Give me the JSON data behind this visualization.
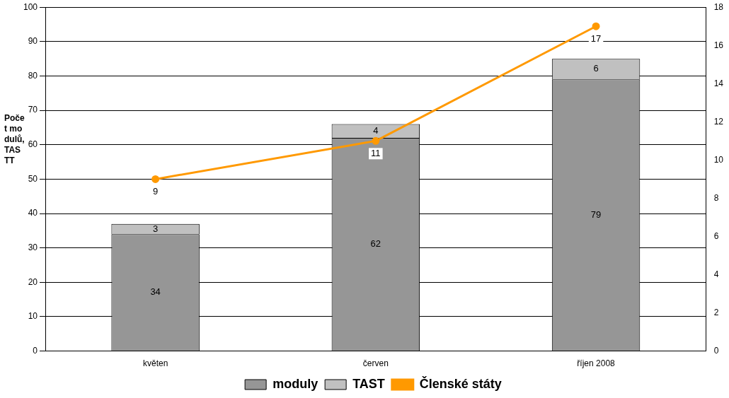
{
  "chart_data": {
    "type": "bar",
    "stacked": true,
    "ylabel": "Počet modulů, TASTT",
    "categories": [
      "květen",
      "červen",
      "říjen 2008"
    ],
    "series": [
      {
        "name": "moduly",
        "color": "#969696",
        "values": [
          34,
          62,
          79
        ]
      },
      {
        "name": "TAST",
        "color": "#c0c0c0",
        "values": [
          3,
          4,
          6
        ]
      },
      {
        "name": "Členské státy",
        "type": "line",
        "axis": "y2",
        "color": "#ff9900",
        "values": [
          9,
          11,
          17
        ]
      }
    ],
    "ylim": [
      0,
      100
    ],
    "yticks": [
      0,
      10,
      20,
      30,
      40,
      50,
      60,
      70,
      80,
      90,
      100
    ],
    "y2lim": [
      0,
      18
    ],
    "y2ticks": [
      0,
      2,
      4,
      6,
      8,
      10,
      12,
      14,
      16,
      18
    ],
    "grid": "y",
    "legend": "bottom",
    "data_labels": true,
    "marker": "circle",
    "line_style": "solid"
  }
}
